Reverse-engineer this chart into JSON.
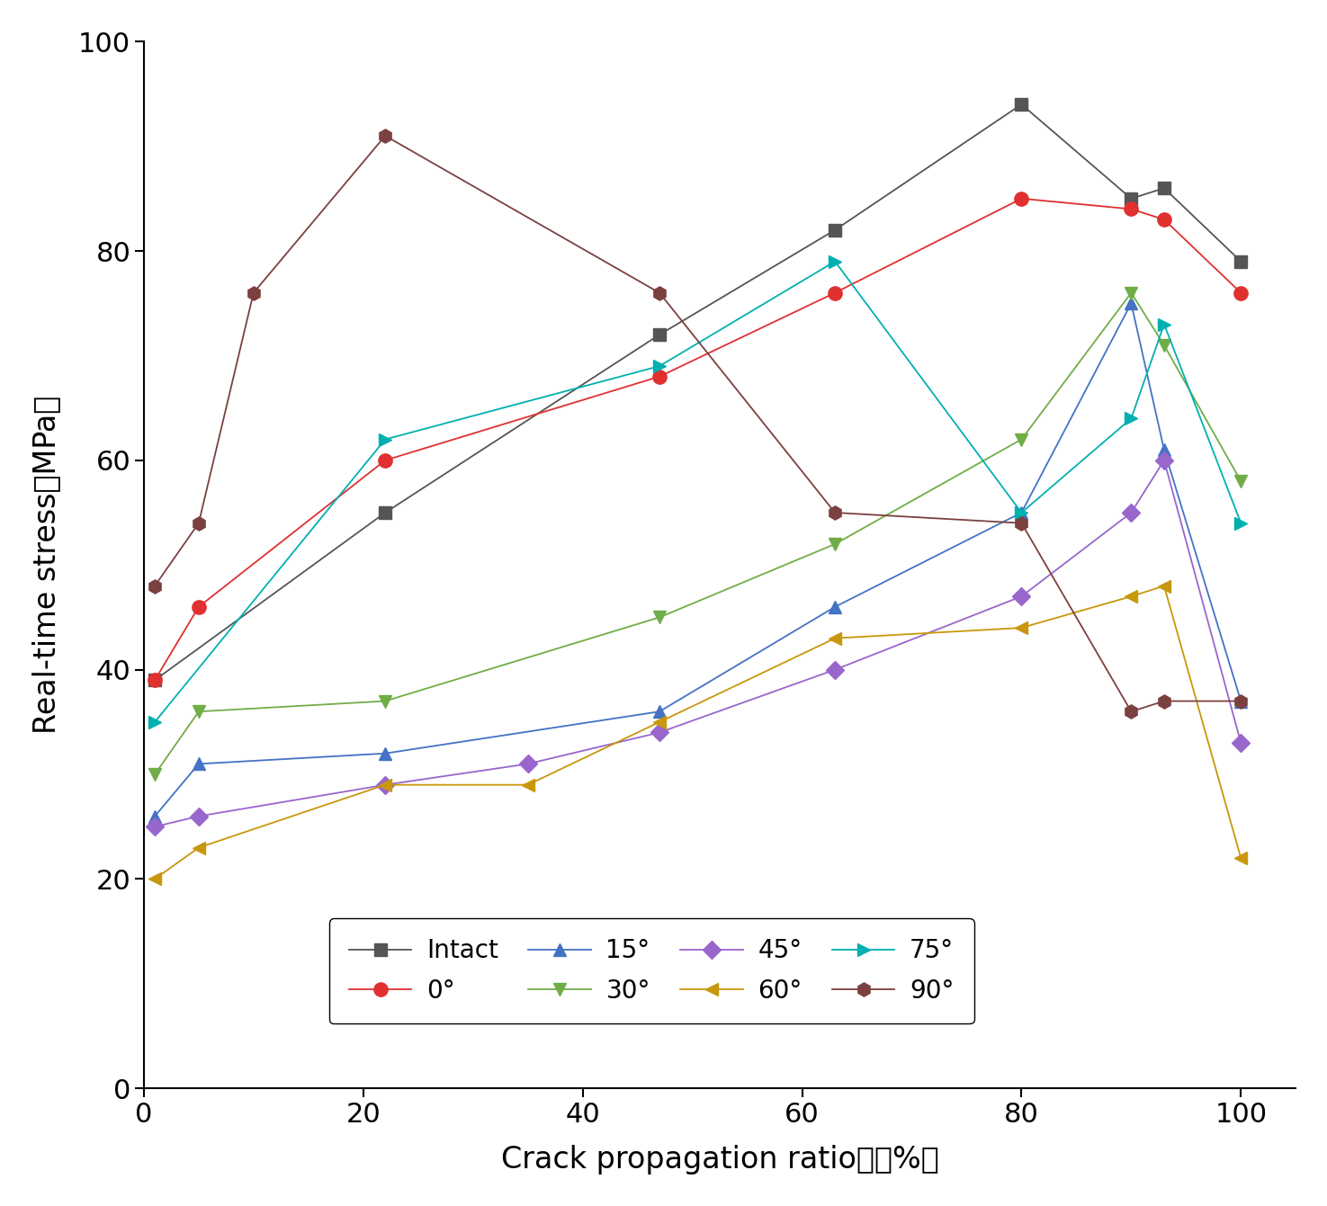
{
  "background_color": "#ffffff",
  "xlabel": "Crack propagation ratio　（%）",
  "ylabel": "Real-time stress（MPa）",
  "xlim": [
    0,
    105
  ],
  "ylim": [
    0,
    100
  ],
  "xticks": [
    0,
    20,
    40,
    60,
    80,
    100
  ],
  "yticks": [
    0,
    20,
    40,
    60,
    80,
    100
  ],
  "series": [
    {
      "label": "Intact",
      "color": "#555555",
      "marker": "s",
      "markersize": 10,
      "linewidth": 1.3,
      "x": [
        1,
        22,
        47,
        63,
        80,
        90,
        93,
        100
      ],
      "y": [
        39,
        55,
        72,
        82,
        94,
        85,
        86,
        79
      ]
    },
    {
      "label": "0°",
      "color": "#e03030",
      "marker": "o",
      "markersize": 11,
      "linewidth": 1.3,
      "x": [
        1,
        5,
        22,
        47,
        63,
        80,
        90,
        93,
        100
      ],
      "y": [
        39,
        46,
        60,
        68,
        76,
        85,
        84,
        83,
        76
      ]
    },
    {
      "label": "15°",
      "color": "#4472c4",
      "marker": "^",
      "markersize": 10,
      "linewidth": 1.3,
      "x": [
        1,
        5,
        22,
        47,
        63,
        80,
        90,
        93,
        100
      ],
      "y": [
        26,
        31,
        32,
        36,
        46,
        55,
        75,
        61,
        37
      ]
    },
    {
      "label": "30°",
      "color": "#70ad47",
      "marker": "v",
      "markersize": 10,
      "linewidth": 1.3,
      "x": [
        1,
        5,
        22,
        47,
        63,
        80,
        90,
        93,
        100
      ],
      "y": [
        30,
        36,
        37,
        45,
        52,
        62,
        76,
        71,
        58
      ]
    },
    {
      "label": "45°",
      "color": "#9966cc",
      "marker": "D",
      "markersize": 10,
      "linewidth": 1.3,
      "x": [
        1,
        5,
        22,
        35,
        47,
        63,
        80,
        90,
        93,
        100
      ],
      "y": [
        25,
        26,
        29,
        31,
        34,
        40,
        47,
        55,
        60,
        33
      ]
    },
    {
      "label": "60°",
      "color": "#c8970c",
      "marker": "<",
      "markersize": 10,
      "linewidth": 1.3,
      "x": [
        1,
        5,
        22,
        35,
        47,
        63,
        80,
        90,
        93,
        100
      ],
      "y": [
        20,
        23,
        29,
        29,
        35,
        43,
        44,
        47,
        48,
        22
      ]
    },
    {
      "label": "75°",
      "color": "#00b0b0",
      "marker": ">",
      "markersize": 10,
      "linewidth": 1.3,
      "x": [
        1,
        22,
        47,
        63,
        80,
        90,
        93,
        100
      ],
      "y": [
        35,
        62,
        69,
        79,
        55,
        64,
        73,
        54
      ]
    },
    {
      "label": "90°",
      "color": "#7b4040",
      "marker": "h",
      "markersize": 11,
      "linewidth": 1.3,
      "x": [
        1,
        5,
        10,
        22,
        47,
        63,
        80,
        90,
        93,
        100
      ],
      "y": [
        48,
        54,
        76,
        91,
        76,
        55,
        54,
        36,
        37,
        37
      ]
    }
  ]
}
